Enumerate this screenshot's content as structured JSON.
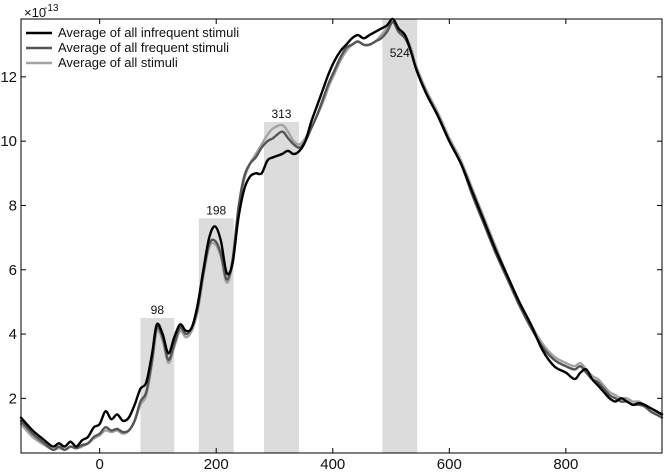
{
  "chart_data": {
    "type": "line",
    "title": "",
    "xlabel": "",
    "ylabel": "",
    "y_exponent_base": "×10",
    "y_exponent_power": "-13",
    "xlim": [
      -135,
      965
    ],
    "ylim": [
      0.3,
      13.8
    ],
    "x_ticks": [
      0,
      200,
      400,
      600,
      800
    ],
    "y_ticks": [
      2,
      4,
      6,
      8,
      10,
      12
    ],
    "grid": false,
    "legend_position": "top-left",
    "bands": [
      {
        "label": "98",
        "x_start": 70,
        "x_end": 128,
        "height": 4.5
      },
      {
        "label": "198",
        "x_start": 170,
        "x_end": 230,
        "height": 7.6
      },
      {
        "label": "313",
        "x_start": 282,
        "x_end": 342,
        "height": 10.6
      },
      {
        "label": "524",
        "x_start": 485,
        "x_end": 545,
        "height": 13.8
      }
    ],
    "series": [
      {
        "name": "Average of all infrequent stimuli",
        "color": "#000000",
        "x": [
          -135,
          -115,
          -95,
          -80,
          -70,
          -60,
          -50,
          -40,
          -30,
          -20,
          -10,
          0,
          10,
          20,
          30,
          40,
          50,
          60,
          70,
          80,
          90,
          98,
          108,
          118,
          128,
          138,
          148,
          158,
          168,
          178,
          188,
          198,
          208,
          218,
          228,
          238,
          248,
          258,
          268,
          278,
          288,
          298,
          313,
          323,
          333,
          343,
          353,
          363,
          373,
          383,
          393,
          403,
          413,
          423,
          433,
          443,
          453,
          463,
          473,
          483,
          493,
          503,
          513,
          524,
          534,
          544,
          560,
          580,
          600,
          620,
          640,
          660,
          680,
          700,
          720,
          740,
          760,
          780,
          800,
          815,
          825,
          835,
          845,
          855,
          865,
          875,
          885,
          895,
          905,
          915,
          925,
          935,
          945,
          955,
          965
        ],
        "values": [
          1.4,
          1.0,
          0.7,
          0.5,
          0.6,
          0.5,
          0.65,
          0.5,
          0.7,
          0.8,
          1.1,
          1.2,
          1.6,
          1.35,
          1.5,
          1.3,
          1.4,
          1.8,
          2.3,
          2.5,
          3.4,
          4.3,
          4.0,
          3.4,
          3.9,
          4.3,
          4.1,
          4.2,
          4.9,
          6.0,
          7.0,
          7.35,
          6.9,
          5.9,
          6.2,
          7.6,
          8.5,
          8.9,
          9.0,
          9.0,
          9.4,
          9.5,
          9.6,
          9.7,
          9.6,
          9.7,
          10.0,
          10.6,
          11.1,
          11.6,
          12.1,
          12.5,
          12.8,
          13.0,
          13.2,
          13.3,
          13.2,
          13.3,
          13.4,
          13.5,
          13.6,
          13.8,
          13.5,
          13.3,
          12.8,
          12.2,
          11.5,
          10.8,
          10.0,
          9.3,
          8.4,
          7.5,
          6.6,
          5.8,
          5.0,
          4.3,
          3.5,
          3.0,
          2.8,
          2.6,
          2.8,
          2.9,
          2.6,
          2.4,
          2.2,
          2.0,
          1.9,
          2.0,
          1.9,
          1.8,
          1.85,
          1.8,
          1.7,
          1.6,
          1.5
        ]
      },
      {
        "name": "Average of all frequent stimuli",
        "color": "#555555",
        "x": [
          -135,
          -115,
          -95,
          -80,
          -70,
          -60,
          -50,
          -40,
          -30,
          -20,
          -10,
          0,
          10,
          20,
          30,
          40,
          50,
          60,
          70,
          80,
          90,
          98,
          108,
          118,
          128,
          138,
          148,
          158,
          168,
          178,
          188,
          198,
          208,
          218,
          228,
          238,
          248,
          258,
          268,
          278,
          288,
          298,
          313,
          323,
          333,
          343,
          353,
          363,
          373,
          383,
          393,
          403,
          413,
          423,
          433,
          443,
          453,
          463,
          473,
          483,
          493,
          503,
          513,
          524,
          534,
          544,
          560,
          580,
          600,
          620,
          640,
          660,
          680,
          700,
          720,
          740,
          760,
          780,
          800,
          815,
          825,
          835,
          845,
          855,
          865,
          875,
          885,
          895,
          905,
          915,
          925,
          935,
          945,
          955,
          965
        ],
        "values": [
          1.3,
          0.9,
          0.6,
          0.4,
          0.5,
          0.4,
          0.5,
          0.45,
          0.55,
          0.6,
          0.8,
          0.9,
          1.1,
          1.0,
          1.05,
          0.95,
          1.0,
          1.3,
          1.9,
          2.2,
          3.2,
          4.2,
          3.9,
          3.2,
          3.7,
          4.2,
          4.0,
          4.2,
          4.8,
          5.9,
          6.8,
          6.9,
          6.5,
          5.7,
          6.3,
          7.9,
          8.9,
          9.3,
          9.5,
          9.8,
          10.0,
          10.1,
          10.3,
          10.1,
          9.9,
          9.8,
          10.0,
          10.4,
          10.8,
          11.3,
          11.8,
          12.2,
          12.6,
          12.9,
          13.0,
          13.1,
          13.0,
          13.0,
          13.1,
          13.2,
          13.4,
          13.7,
          13.4,
          13.2,
          12.8,
          12.2,
          11.5,
          10.8,
          10.0,
          9.3,
          8.3,
          7.4,
          6.5,
          5.7,
          4.9,
          4.2,
          3.6,
          3.2,
          3.0,
          2.9,
          3.0,
          2.8,
          2.6,
          2.5,
          2.3,
          2.1,
          2.0,
          1.9,
          1.9,
          1.8,
          1.8,
          1.75,
          1.6,
          1.5,
          1.4
        ]
      },
      {
        "name": "Average of all stimuli",
        "color": "#a3a3a3",
        "x": [
          -135,
          -115,
          -95,
          -80,
          -70,
          -60,
          -50,
          -40,
          -30,
          -20,
          -10,
          0,
          10,
          20,
          30,
          40,
          50,
          60,
          70,
          80,
          90,
          98,
          108,
          118,
          128,
          138,
          148,
          158,
          168,
          178,
          188,
          198,
          208,
          218,
          228,
          238,
          248,
          258,
          268,
          278,
          288,
          298,
          313,
          323,
          333,
          343,
          353,
          363,
          373,
          383,
          393,
          403,
          413,
          423,
          433,
          443,
          453,
          463,
          473,
          483,
          493,
          503,
          513,
          524,
          534,
          544,
          560,
          580,
          600,
          620,
          640,
          660,
          680,
          700,
          720,
          740,
          760,
          780,
          800,
          815,
          825,
          835,
          845,
          855,
          865,
          875,
          885,
          895,
          905,
          915,
          925,
          935,
          945,
          955,
          965
        ],
        "values": [
          1.2,
          0.8,
          0.55,
          0.4,
          0.45,
          0.4,
          0.5,
          0.45,
          0.5,
          0.6,
          0.75,
          0.85,
          1.0,
          0.95,
          1.0,
          0.9,
          1.0,
          1.3,
          1.8,
          2.1,
          3.1,
          4.1,
          3.8,
          3.1,
          3.6,
          4.1,
          3.9,
          4.1,
          4.7,
          5.8,
          6.7,
          6.8,
          6.4,
          5.6,
          6.2,
          7.8,
          8.8,
          9.3,
          9.6,
          9.9,
          10.2,
          10.4,
          10.5,
          10.3,
          10.0,
          9.9,
          10.1,
          10.4,
          10.8,
          11.2,
          11.7,
          12.1,
          12.5,
          12.8,
          13.0,
          13.1,
          13.0,
          13.0,
          13.1,
          13.3,
          13.5,
          13.7,
          13.5,
          13.3,
          12.9,
          12.3,
          11.6,
          10.9,
          10.1,
          9.4,
          8.5,
          7.6,
          6.7,
          5.8,
          5.0,
          4.3,
          3.7,
          3.3,
          3.1,
          3.0,
          3.1,
          2.9,
          2.7,
          2.6,
          2.4,
          2.2,
          2.1,
          2.0,
          2.0,
          1.9,
          1.9,
          1.8,
          1.7,
          1.6,
          1.5
        ]
      }
    ]
  }
}
